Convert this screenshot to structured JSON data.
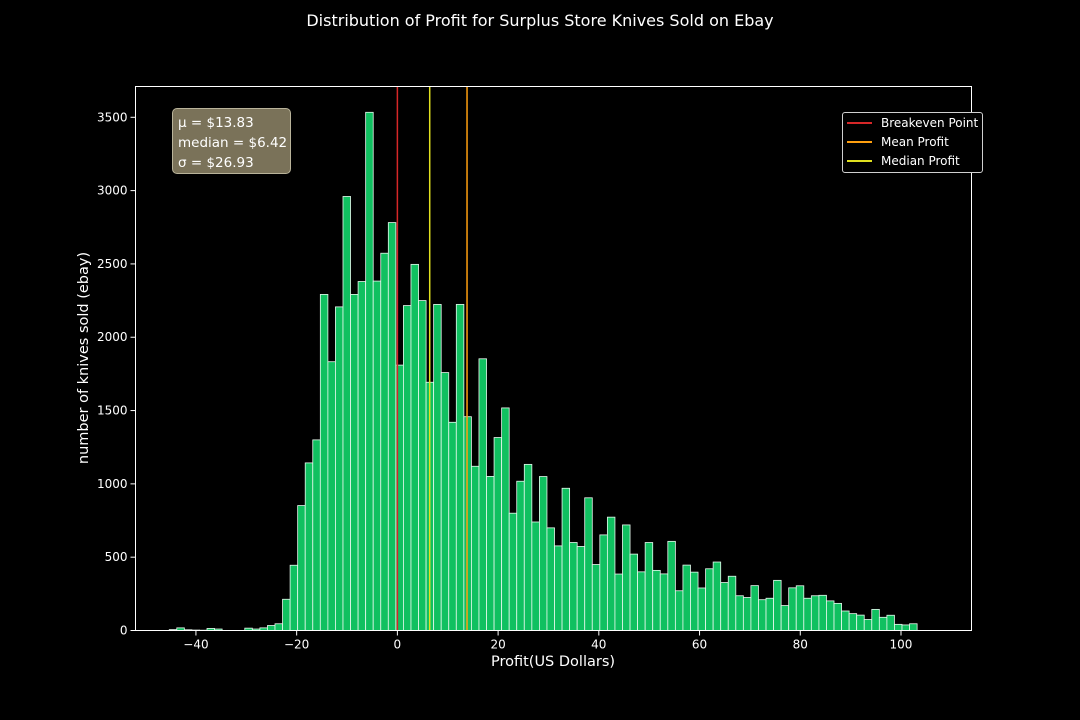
{
  "chart_data": {
    "type": "bar",
    "title": "Distribution of Profit for Surplus Store Knives Sold on Ebay",
    "xlabel": "Profit(US Dollars)",
    "ylabel": "number of knives sold (ebay)",
    "xlim": [
      -52,
      114
    ],
    "ylim": [
      0,
      3710
    ],
    "xticks": [
      -40,
      -20,
      0,
      20,
      40,
      60,
      80,
      100
    ],
    "yticks": [
      0,
      500,
      1000,
      1500,
      2000,
      2500,
      3000,
      3500
    ],
    "bins_start": -45.3,
    "bin_width": 1.5,
    "values": [
      6,
      18,
      5,
      3,
      2,
      14,
      10,
      0,
      0,
      0,
      16,
      10,
      18,
      34,
      46,
      213,
      445,
      852,
      1143,
      1300,
      2292,
      1833,
      2207,
      2960,
      2292,
      2380,
      3534,
      2383,
      2573,
      2782,
      1810,
      2216,
      2497,
      2250,
      1693,
      2224,
      1759,
      1420,
      2224,
      1458,
      1120,
      1853,
      1051,
      1316,
      1518,
      800,
      1018,
      1133,
      740,
      1050,
      700,
      577,
      970,
      600,
      573,
      905,
      450,
      652,
      773,
      385,
      720,
      521,
      400,
      600,
      410,
      386,
      608,
      271,
      446,
      398,
      290,
      421,
      467,
      327,
      370,
      237,
      225,
      306,
      210,
      220,
      342,
      170,
      291,
      305,
      220,
      237,
      240,
      202,
      185,
      133,
      115,
      105,
      75,
      144,
      90,
      104,
      42,
      38,
      46
    ],
    "vlines": [
      {
        "name": "Breakeven Point",
        "x": 0,
        "color": "#d62728"
      },
      {
        "name": "Mean Profit",
        "x": 13.83,
        "color": "#ff9f0f"
      },
      {
        "name": "Median Profit",
        "x": 6.42,
        "color": "#e0e020"
      }
    ],
    "bar_color": "#10c060",
    "bar_edge": "#e8f8ee",
    "grid": false,
    "legend_position": "upper right"
  },
  "stats": {
    "mean": "μ = $13.83",
    "median": "median = $6.42",
    "std": "σ = $26.93"
  }
}
